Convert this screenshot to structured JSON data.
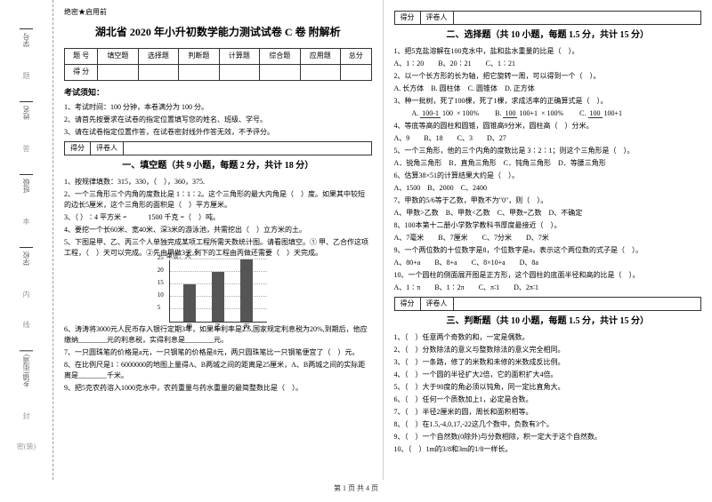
{
  "binding": {
    "labels": [
      "学号",
      "姓名",
      "班级",
      "学校",
      "乡镇(街道)"
    ],
    "marks": [
      "题",
      "答",
      "本",
      "内",
      "线",
      "封",
      "密(装)"
    ]
  },
  "secret": "绝密★启用前",
  "title": "湖北省 2020 年小升初数学能力测试试卷 C 卷 附解析",
  "scoreTable": {
    "headers": [
      "题 号",
      "填空题",
      "选择题",
      "判断题",
      "计算题",
      "综合题",
      "应用题",
      "总分"
    ],
    "row2": "得 分"
  },
  "noticeTitle": "考试须知：",
  "notices": [
    "1、考试时间：100 分钟，本卷满分为 100 分。",
    "2、请首先按要求在试卷的指定位置填写您的姓名、班级、学号。",
    "3、请在试卷指定位置作答，在试卷密封线外作答无效，不予评分。"
  ],
  "sectionBar": {
    "c1": "得分",
    "c2": "评卷人"
  },
  "sec1": {
    "title": "一、填空题（共 9 小题，每题 2 分，共计 18 分）",
    "q1": "1、按规律填数：315，330，（　），360，375.",
    "q2": "2、一个三角形三个内角的度数比是 1∶1∶2。这个三角形的最大内角是（　）度。如果其中较短的边长5厘米，这个三角形的面积是（　）平方厘米。",
    "q3a": "3、（ ）∶4 平方米 =",
    "q3b": "1500 千克 =（　）吨。",
    "q4": "4、要挖一个长60米、宽40米、深3米的游泳池，共需挖出（　）立方米的土。",
    "q5": "5、下图是甲、乙、丙三个人单独完成某项工程所需天数统计图。请看图填空。① 甲、乙合作这项工程，（　）天可以完成。②先由甲做3天,剩下的工程由丙做还需要（　）天完成。",
    "chart": {
      "ylabel": "单位：天",
      "ymax": 25,
      "ystep": 5,
      "bars": [
        {
          "label": "甲",
          "value": 15,
          "color": "#555"
        },
        {
          "label": "乙",
          "value": 20,
          "color": "#555"
        },
        {
          "label": "丙",
          "value": 25,
          "color": "#555"
        }
      ]
    },
    "q6": "6、涛涛将3000元人民币存入银行定期3年，如果年利率是2.5,国家规定利息税为20%,到期后，他应缴纳________元的利息税，实得利息是________元。",
    "q7": "7、一只圆珠笔的价格是а元，一只钢笔的价格是8元，两只圆珠笔比一只钢笔便宜了（　）元。",
    "q8": "8、在比例尺是1∶6000000的地图上量得A、B两城之间的距离是25厘米，A、B两城之间的实际距离是________千米。",
    "q9": "9、把5克农药溶入1000克水中，农药重量与药水重量的最简整数比是（　）。"
  },
  "sec2": {
    "title": "二、选择题（共 10 小题，每题 1.5 分，共计 15 分）",
    "q1": "1、把5克盐溶解在100克水中，盐和盐水重量的比是（　）。",
    "q1opts": "A、1∶20　　B、20∶21　　C、1∶21",
    "q2": "2、以一个长方形的长为轴，把它旋转一周，可以得到一个（　）。",
    "q2opts": "A. 长方体　B. 圆柱体　C. 圆锥体　D. 正方体",
    "q3": "3、种一批树，死了100棵，死了1棵，求成活率的正确算式是（　）。",
    "q3a_n": "100-1",
    "q3a_d": "100",
    "q3a_suf": "× 100%",
    "q3b_n": "100",
    "q3b_d": "100+1",
    "q3b_suf": "× 100%",
    "q3c_n": "100",
    "q3c_d": "100+1",
    "q4": "4、等底等高的圆柱和圆锥，圆锥高9分米，圆柱高（　）分米。",
    "q4opts": "A、9　　B、18　　C、3　　D、27",
    "q5": "5、一个三角形，他的三个内角的度数比是 3∶2∶1；则这个三角形是（　）。",
    "q5opts": "A．锐角三角形　B．直角三角形　C．钝角三角形　D．等腰三角形",
    "q6": "6、估算38×51的计算结果大约是（　）。",
    "q6opts": "A、1500　B、2000　C、2400",
    "q7": "7、甲数的5/6等于乙数，甲数不为\"0\"，则（　）。",
    "q7opts": "A、甲数>乙数　B、甲数<乙数　C、甲数=乙数　D、不确定",
    "q8": "8、100本第十二册小学数学教科书厚度最接近（　）。",
    "q8opts": "A、7毫米　　B、7厘米　　C、7分米　　D、7米",
    "q9": "9、一个两位数的十位数字是8，个位数字是а，表示这个两位数的式子是（　）。",
    "q9opts": "A、80+а　　B、8+а　　C、8×10+а　　D、8а",
    "q10": "10、一个圆柱的侧面展开图是正方形，这个圆柱的底面半径和高的比是（　）。",
    "q10opts": "A、1∶π　　B、1∶2π　　C、π∶1　　D、2π∶1"
  },
  "sec3": {
    "title": "三、判断题（共 10 小题，每题 1.5 分，共计 15 分）",
    "items": [
      "1、（　）任意两个奇数的和，一定是偶数。",
      "2、（　）分数除法的意义与整数除法的意义完全相同。",
      "3、（　）一条路，修了的米数和未修的米数成反比例。",
      "4、（　）一个圆的半径扩大2倍，它的面积扩大4倍。",
      "5、（　）大于90度的角必须以钝角，同一定比直角大。",
      "6、（　）任何一个质数加上1，必定是合数。",
      "7、（　）半径2厘米的圆，周长和面积相等。",
      "8、（　）在1.5,-4,0,17,-22这几个数中，负数有3个。",
      "9、（　）一个自然数(0除外)与分数相除，积一定大于这个自然数。",
      "10、（　）1m的3/8和3m的1/8一样长。"
    ]
  },
  "footer": "第 1 页 共 4 页"
}
